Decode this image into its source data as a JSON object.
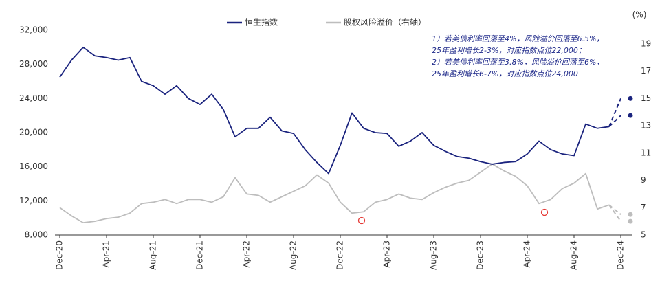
{
  "chart_data": {
    "type": "line",
    "categories": [
      "Dec-20",
      null,
      null,
      null,
      "Apr-21",
      null,
      null,
      null,
      "Aug-21",
      null,
      null,
      null,
      "Dec-21",
      null,
      null,
      null,
      "Apr-22",
      null,
      null,
      null,
      "Aug-22",
      null,
      null,
      null,
      "Dec-22",
      null,
      null,
      null,
      "Apr-23",
      null,
      null,
      null,
      "Aug-23",
      null,
      null,
      null,
      "Dec-23",
      null,
      null,
      null,
      "Apr-24",
      null,
      null,
      null,
      "Aug-24",
      null,
      null,
      null,
      "Dec-24"
    ],
    "series": [
      {
        "name": "恒生指数",
        "color": "#1a237e",
        "values": [
          26500,
          28500,
          30000,
          29000,
          28800,
          28500,
          28800,
          26000,
          25500,
          24500,
          25500,
          24000,
          23300,
          24500,
          22700,
          19500,
          20500,
          20500,
          21800,
          20200,
          19900,
          18000,
          16500,
          15200,
          18500,
          22300,
          20500,
          20000,
          19900,
          18400,
          19000,
          20000,
          18500,
          17800,
          17200,
          17000,
          16600,
          16300,
          16500,
          16600,
          17500,
          19000,
          18000,
          17500,
          17300,
          21000,
          20500,
          20700,
          null
        ]
      },
      {
        "name": "股权风险溢价（右轴）",
        "color": "#bdbdbd",
        "axis": "y2",
        "values": [
          7.0,
          6.4,
          5.9,
          6.0,
          6.2,
          6.3,
          6.6,
          7.3,
          7.4,
          7.6,
          7.3,
          7.6,
          7.6,
          7.4,
          7.8,
          9.2,
          8.0,
          7.9,
          7.4,
          7.8,
          8.2,
          8.6,
          9.4,
          8.8,
          7.4,
          6.6,
          6.7,
          7.4,
          7.6,
          8.0,
          7.7,
          7.6,
          8.1,
          8.5,
          8.8,
          9.0,
          9.6,
          10.2,
          9.7,
          9.3,
          8.6,
          7.3,
          7.6,
          8.4,
          8.8,
          9.5,
          6.9,
          7.2,
          null
        ]
      },
      {
        "color": "#1a237e",
        "dash": true,
        "end_marker": true,
        "values": [
          null,
          null,
          null,
          null,
          null,
          null,
          null,
          null,
          null,
          null,
          null,
          null,
          null,
          null,
          null,
          null,
          null,
          null,
          null,
          null,
          null,
          null,
          null,
          null,
          null,
          null,
          null,
          null,
          null,
          null,
          null,
          null,
          null,
          null,
          null,
          null,
          null,
          null,
          null,
          null,
          null,
          null,
          null,
          null,
          null,
          null,
          null,
          20700,
          24000
        ]
      },
      {
        "color": "#1a237e",
        "dash": true,
        "end_marker": true,
        "values": [
          null,
          null,
          null,
          null,
          null,
          null,
          null,
          null,
          null,
          null,
          null,
          null,
          null,
          null,
          null,
          null,
          null,
          null,
          null,
          null,
          null,
          null,
          null,
          null,
          null,
          null,
          null,
          null,
          null,
          null,
          null,
          null,
          null,
          null,
          null,
          null,
          null,
          null,
          null,
          null,
          null,
          null,
          null,
          null,
          null,
          null,
          null,
          20700,
          22000
        ]
      },
      {
        "color": "#bdbdbd",
        "axis": "y2",
        "dash": true,
        "end_marker": true,
        "values": [
          null,
          null,
          null,
          null,
          null,
          null,
          null,
          null,
          null,
          null,
          null,
          null,
          null,
          null,
          null,
          null,
          null,
          null,
          null,
          null,
          null,
          null,
          null,
          null,
          null,
          null,
          null,
          null,
          null,
          null,
          null,
          null,
          null,
          null,
          null,
          null,
          null,
          null,
          null,
          null,
          null,
          null,
          null,
          null,
          null,
          null,
          null,
          7.2,
          6.5
        ]
      },
      {
        "color": "#bdbdbd",
        "axis": "y2",
        "dash": true,
        "end_marker": true,
        "values": [
          null,
          null,
          null,
          null,
          null,
          null,
          null,
          null,
          null,
          null,
          null,
          null,
          null,
          null,
          null,
          null,
          null,
          null,
          null,
          null,
          null,
          null,
          null,
          null,
          null,
          null,
          null,
          null,
          null,
          null,
          null,
          null,
          null,
          null,
          null,
          null,
          null,
          null,
          null,
          null,
          null,
          null,
          null,
          null,
          null,
          null,
          null,
          7.2,
          6.0
        ]
      }
    ],
    "ylim": [
      8000,
      32000
    ],
    "yticks": [
      {
        "value": 8000,
        "label": "8,000"
      },
      {
        "value": 12000,
        "label": "12,000"
      },
      {
        "value": 16000,
        "label": "16,000"
      },
      {
        "value": 20000,
        "label": "20,000"
      },
      {
        "value": 24000,
        "label": "24,000"
      },
      {
        "value": 28000,
        "label": "28,000"
      },
      {
        "value": 32000,
        "label": "32,000"
      }
    ],
    "y2lim": [
      5,
      20
    ],
    "y2ticks": [
      5,
      7,
      9,
      11,
      13,
      15,
      17,
      19
    ],
    "y2_unit": "(%)",
    "annotations": [
      "1）若美债利率回落至4%，风险溢价回落至6.5%，",
      "25年盈利增长2-3%，对应指数点位22,000；",
      "2）若美债利率回落至3.8%，风险溢价回落至6%，",
      "25年盈利增长6-7%，对应指数点位24,000"
    ],
    "grid": false
  }
}
